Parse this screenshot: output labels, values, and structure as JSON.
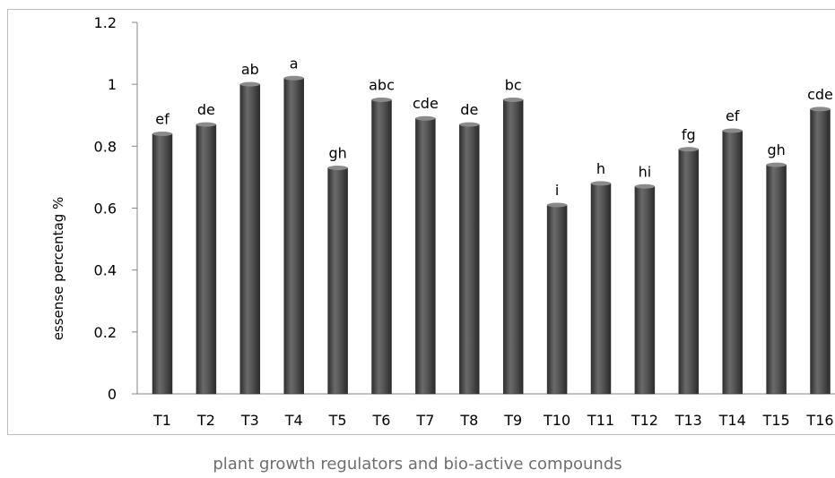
{
  "chart_data": {
    "type": "bar",
    "ylabel": "essense percentag %",
    "xlabel": "plant growth regulators and bio-active compounds",
    "ylim": [
      0,
      1.2
    ],
    "yticks": [
      0,
      0.2,
      0.4,
      0.6,
      0.8,
      1,
      1.2
    ],
    "grid": false,
    "categories": [
      "T1",
      "T2",
      "T3",
      "T4",
      "T5",
      "T6",
      "T7",
      "T8",
      "T9",
      "T10",
      "T11",
      "T12",
      "T13",
      "T14",
      "T15",
      "T16"
    ],
    "values": [
      0.84,
      0.87,
      1.0,
      1.02,
      0.73,
      0.95,
      0.89,
      0.87,
      0.95,
      0.61,
      0.68,
      0.67,
      0.79,
      0.85,
      0.74,
      0.92
    ],
    "data_labels": [
      "ef",
      "de",
      "ab",
      "a",
      "gh",
      "abc",
      "cde",
      "de",
      "bc",
      "i",
      "h",
      "hi",
      "fg",
      "ef",
      "gh",
      "cde"
    ],
    "bar_color": "#4a4a4a"
  }
}
